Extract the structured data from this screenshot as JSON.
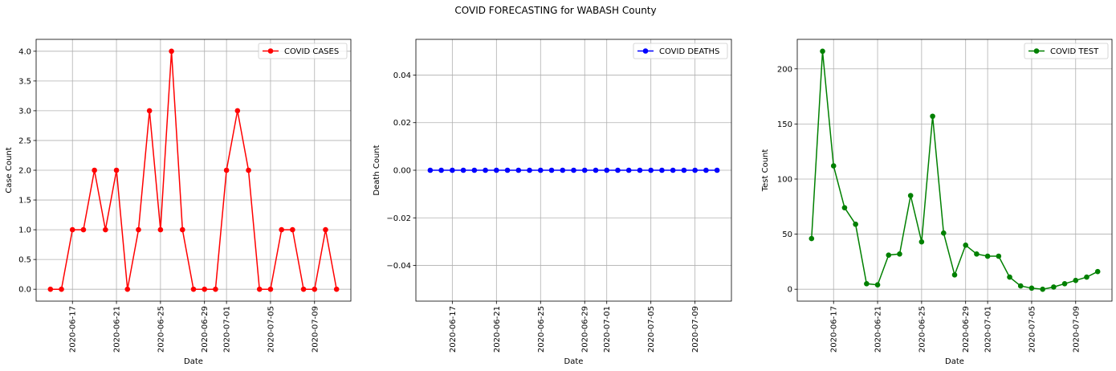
{
  "figure": {
    "title": "COVID FORECASTING for WABASH County"
  },
  "chart_data": [
    {
      "type": "line",
      "title": "",
      "xlabel": "Date",
      "ylabel": "Case Count",
      "x_start": "2020-06-15",
      "x_end": "2020-07-11",
      "xticks": [
        "2020-06-17",
        "2020-06-21",
        "2020-06-25",
        "2020-06-29",
        "2020-07-01",
        "2020-07-05",
        "2020-07-09"
      ],
      "yticks": [
        "0.0",
        "0.5",
        "1.0",
        "1.5",
        "2.0",
        "2.5",
        "3.0",
        "3.5",
        "4.0"
      ],
      "ylim": [
        -0.2,
        4.2
      ],
      "grid": true,
      "legend_position": "upper right",
      "series": [
        {
          "name": "COVID CASES",
          "color": "#ff0000",
          "marker": "circle",
          "x": [
            "2020-06-15",
            "2020-06-16",
            "2020-06-17",
            "2020-06-18",
            "2020-06-19",
            "2020-06-20",
            "2020-06-21",
            "2020-06-22",
            "2020-06-23",
            "2020-06-24",
            "2020-06-25",
            "2020-06-26",
            "2020-06-27",
            "2020-06-28",
            "2020-06-29",
            "2020-06-30",
            "2020-07-01",
            "2020-07-02",
            "2020-07-03",
            "2020-07-04",
            "2020-07-05",
            "2020-07-06",
            "2020-07-07",
            "2020-07-08",
            "2020-07-09",
            "2020-07-10",
            "2020-07-11"
          ],
          "values": [
            0,
            0,
            1,
            1,
            2,
            1,
            2,
            0,
            1,
            3,
            1,
            4,
            1,
            0,
            0,
            0,
            2,
            3,
            2,
            0,
            0,
            1,
            1,
            0,
            0,
            1,
            0
          ]
        }
      ]
    },
    {
      "type": "line",
      "title": "",
      "xlabel": "Date",
      "ylabel": "Death Count",
      "x_start": "2020-06-15",
      "x_end": "2020-07-11",
      "xticks": [
        "2020-06-17",
        "2020-06-21",
        "2020-06-25",
        "2020-06-29",
        "2020-07-01",
        "2020-07-05",
        "2020-07-09"
      ],
      "yticks": [
        "−0.04",
        "−0.02",
        "0.00",
        "0.02",
        "0.04"
      ],
      "ylim": [
        -0.055,
        0.055
      ],
      "grid": true,
      "legend_position": "upper right",
      "series": [
        {
          "name": "COVID DEATHS",
          "color": "#0000ff",
          "marker": "circle",
          "x": [
            "2020-06-15",
            "2020-06-16",
            "2020-06-17",
            "2020-06-18",
            "2020-06-19",
            "2020-06-20",
            "2020-06-21",
            "2020-06-22",
            "2020-06-23",
            "2020-06-24",
            "2020-06-25",
            "2020-06-26",
            "2020-06-27",
            "2020-06-28",
            "2020-06-29",
            "2020-06-30",
            "2020-07-01",
            "2020-07-02",
            "2020-07-03",
            "2020-07-04",
            "2020-07-05",
            "2020-07-06",
            "2020-07-07",
            "2020-07-08",
            "2020-07-09",
            "2020-07-10",
            "2020-07-11"
          ],
          "values": [
            0,
            0,
            0,
            0,
            0,
            0,
            0,
            0,
            0,
            0,
            0,
            0,
            0,
            0,
            0,
            0,
            0,
            0,
            0,
            0,
            0,
            0,
            0,
            0,
            0,
            0,
            0
          ]
        }
      ]
    },
    {
      "type": "line",
      "title": "",
      "xlabel": "Date",
      "ylabel": "Test Count",
      "x_start": "2020-06-15",
      "x_end": "2020-07-11",
      "xticks": [
        "2020-06-17",
        "2020-06-21",
        "2020-06-25",
        "2020-06-29",
        "2020-07-01",
        "2020-07-05",
        "2020-07-09"
      ],
      "yticks": [
        "0",
        "50",
        "100",
        "150",
        "200"
      ],
      "ylim": [
        -10.8,
        226.8
      ],
      "grid": true,
      "legend_position": "upper right",
      "series": [
        {
          "name": "COVID TEST",
          "color": "#008000",
          "marker": "circle",
          "x": [
            "2020-06-15",
            "2020-06-16",
            "2020-06-17",
            "2020-06-18",
            "2020-06-19",
            "2020-06-20",
            "2020-06-21",
            "2020-06-22",
            "2020-06-23",
            "2020-06-24",
            "2020-06-25",
            "2020-06-26",
            "2020-06-27",
            "2020-06-28",
            "2020-06-29",
            "2020-06-30",
            "2020-07-01",
            "2020-07-02",
            "2020-07-03",
            "2020-07-04",
            "2020-07-05",
            "2020-07-06",
            "2020-07-07",
            "2020-07-08",
            "2020-07-09",
            "2020-07-10",
            "2020-07-11"
          ],
          "values": [
            46,
            216,
            112,
            74,
            59,
            5,
            4,
            31,
            32,
            85,
            43,
            157,
            51,
            13,
            40,
            32,
            30,
            30,
            11,
            3,
            1,
            0,
            2,
            5,
            8,
            11,
            16
          ]
        }
      ]
    }
  ]
}
